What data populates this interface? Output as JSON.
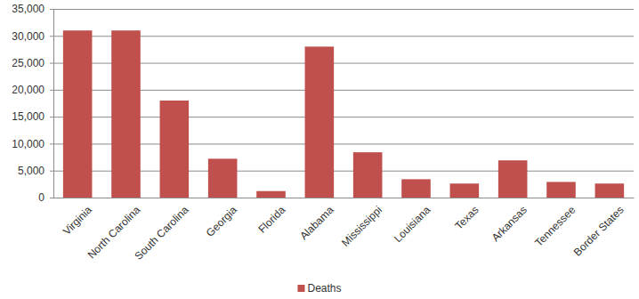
{
  "chart_data": {
    "type": "bar",
    "categories": [
      "Virginia",
      "North Carolina",
      "South Carolina",
      "Georgia",
      "Florida",
      "Alabama",
      "Mississippi",
      "Louisiana",
      "Texas",
      "Arkansas",
      "Tennessee",
      "Border States"
    ],
    "series": [
      {
        "name": "Deaths",
        "color": "#c0504d",
        "values": [
          31000,
          31000,
          18000,
          7200,
          1200,
          28000,
          8400,
          3400,
          2600,
          6900,
          2900,
          2600
        ]
      }
    ],
    "ylim": [
      0,
      35000
    ],
    "yticks": [
      0,
      {
        "value": 5000,
        "label": "5,000"
      },
      {
        "value": 10000,
        "label": "10,000"
      },
      {
        "value": 15000,
        "label": "15,000"
      },
      {
        "value": 20000,
        "label": "20,000"
      },
      {
        "value": 25000,
        "label": "25,000"
      },
      {
        "value": 30000,
        "label": "30,000"
      },
      {
        "value": 35000,
        "label": "35,000"
      }
    ],
    "grid": true,
    "legend": "bottom"
  }
}
